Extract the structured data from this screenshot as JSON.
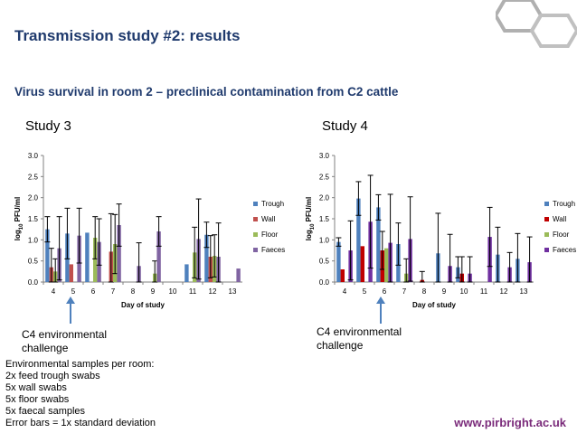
{
  "slide": {
    "title": "Transmission study #2: results",
    "subtitle": "Virus survival in room 2 – preclinical contamination from C2 cattle",
    "annot_left": "C4 environmental challenge",
    "annot_right": "C4 environmental challenge",
    "notes": [
      "Environmental samples per room:",
      "2x feed trough swabs",
      "5x wall swabs",
      "5x floor swabs",
      "5x faecal samples",
      "Error bars = 1x standard deviation"
    ],
    "url": "www.pirbright.ac.uk",
    "colors": {
      "title": "#1f3a6d",
      "arrow": "#4f81bd",
      "url": "#7a2a7a"
    }
  },
  "chart_data": [
    {
      "type": "bar",
      "study_label": "Study 3",
      "categories": [
        "4",
        "5",
        "6",
        "7",
        "8",
        "9",
        "10",
        "11",
        "12",
        "13"
      ],
      "xlabel": "Day of study",
      "ylabel_main": "log",
      "ylabel_sub": "10",
      "ylabel_rest": " PFU/ml",
      "ylim": [
        0,
        3
      ],
      "yticks": [
        "0.0",
        "0.5",
        "1.0",
        "1.5",
        "2.0",
        "2.5",
        "3.0"
      ],
      "series": [
        {
          "name": "Trough",
          "color": "#4f81bd",
          "values": [
            1.25,
            1.15,
            1.17,
            null,
            null,
            null,
            null,
            0.42,
            1.12,
            null
          ],
          "errors": [
            0.3,
            0.6,
            0,
            null,
            null,
            null,
            null,
            0,
            0.3,
            null
          ]
        },
        {
          "name": "Wall",
          "color": "#c0504d",
          "values": [
            0.35,
            0.42,
            null,
            0.72,
            null,
            null,
            null,
            null,
            0.6,
            null
          ],
          "errors": [
            0.45,
            0,
            null,
            0.9,
            null,
            null,
            null,
            null,
            0.5,
            null
          ]
        },
        {
          "name": "Floor",
          "color": "#9bbb59",
          "values": [
            0.25,
            null,
            1.05,
            0.9,
            null,
            0.2,
            null,
            0.7,
            0.62,
            null
          ],
          "errors": [
            0.3,
            null,
            0.5,
            0.7,
            null,
            0.3,
            null,
            0.6,
            0.5,
            null
          ]
        },
        {
          "name": "Faeces",
          "color": "#8064a2",
          "values": [
            0.8,
            1.1,
            0.95,
            1.35,
            0.38,
            1.2,
            null,
            1.02,
            0.6,
            0.32
          ],
          "errors": [
            0.75,
            0.65,
            0.55,
            0.5,
            0.55,
            0.35,
            null,
            0.95,
            0.8,
            0
          ]
        }
      ],
      "legend_position": "right"
    },
    {
      "type": "bar",
      "study_label": "Study 4",
      "categories": [
        "4",
        "5",
        "6",
        "7",
        "8",
        "9",
        "10",
        "11",
        "12",
        "13"
      ],
      "xlabel": "Day of study",
      "ylabel_main": "log",
      "ylabel_sub": "10",
      "ylabel_rest": " PFU/ml",
      "ylim": [
        0,
        3
      ],
      "yticks": [
        "0.0",
        "0.5",
        "1.0",
        "1.5",
        "2.0",
        "2.5",
        "3.0"
      ],
      "series": [
        {
          "name": "Trough",
          "color": "#4f81bd",
          "values": [
            0.95,
            1.98,
            1.77,
            0.9,
            null,
            0.68,
            0.35,
            null,
            0.65,
            0.55
          ],
          "errors": [
            0.1,
            0.4,
            0.3,
            0.5,
            null,
            0.95,
            0.25,
            null,
            0.65,
            0.6
          ]
        },
        {
          "name": "Wall",
          "color": "#c00000",
          "values": [
            0.3,
            0.85,
            0.75,
            null,
            0.05,
            null,
            0.2,
            null,
            null,
            null
          ],
          "errors": [
            0,
            0,
            0.45,
            null,
            0.2,
            null,
            0.4,
            null,
            null,
            null
          ]
        },
        {
          "name": "Floor",
          "color": "#9bbb59",
          "values": [
            null,
            null,
            0.8,
            0.2,
            null,
            null,
            null,
            null,
            null,
            null
          ],
          "errors": [
            null,
            null,
            0,
            0.35,
            null,
            null,
            null,
            null,
            null,
            null
          ]
        },
        {
          "name": "Faeces",
          "color": "#7030a0",
          "values": [
            0.75,
            1.43,
            0.93,
            1.02,
            null,
            0.38,
            0.2,
            1.07,
            0.35,
            0.47
          ],
          "errors": [
            0.7,
            1.1,
            1.15,
            1.0,
            null,
            0.75,
            0.4,
            0.7,
            0.35,
            0.6
          ]
        }
      ],
      "legend_position": "right"
    }
  ]
}
